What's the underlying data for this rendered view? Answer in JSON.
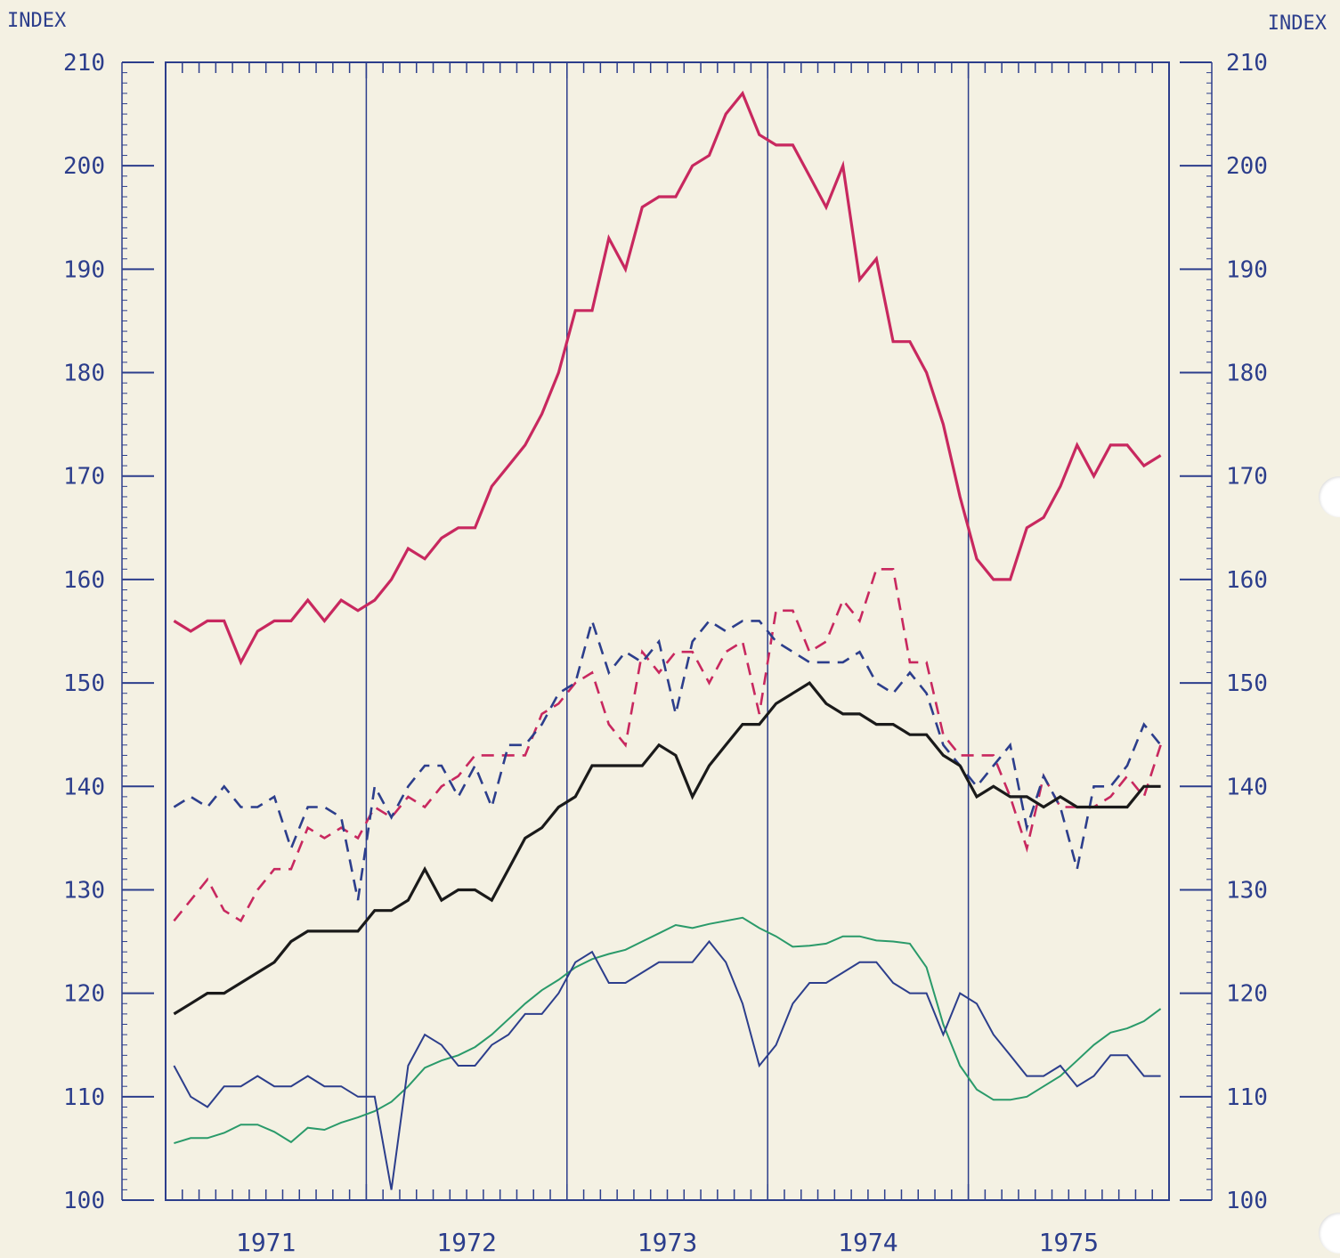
{
  "chart_data": {
    "type": "line",
    "left_axis_label": "INDEX",
    "right_axis_label": "INDEX",
    "ylim": [
      100,
      210
    ],
    "y_ticks": [
      "100",
      "110",
      "120",
      "130",
      "140",
      "150",
      "160",
      "170",
      "180",
      "190",
      "200",
      "210"
    ],
    "years": [
      "1971",
      "1972",
      "1973",
      "1974",
      "1975"
    ],
    "grid": "vertical lines at year boundaries",
    "series": [
      {
        "color": "#c8285f",
        "style": "solid-heavy",
        "values": [
          156,
          155,
          156,
          156,
          152,
          155,
          156,
          156,
          158,
          156,
          158,
          157,
          158,
          160,
          163,
          162,
          164,
          165,
          165,
          169,
          171,
          173,
          176,
          180,
          186,
          186,
          193,
          190,
          196,
          197,
          197,
          200,
          201,
          205,
          207,
          203,
          202,
          202,
          199,
          196,
          200,
          189,
          191,
          183,
          183,
          180,
          175,
          168,
          162,
          160,
          160,
          165,
          166,
          169,
          173,
          170,
          173,
          173,
          171,
          172
        ]
      },
      {
        "color": "#c8285f",
        "style": "dashed",
        "values": [
          127,
          129,
          131,
          128,
          127,
          130,
          132,
          132,
          136,
          135,
          136,
          135,
          138,
          137,
          139,
          138,
          140,
          141,
          143,
          143,
          143,
          143,
          147,
          148,
          150,
          151,
          146,
          144,
          153,
          151,
          153,
          153,
          150,
          153,
          154,
          147,
          157,
          157,
          153,
          154,
          158,
          156,
          161,
          161,
          152,
          152,
          145,
          143,
          143,
          143,
          139,
          134,
          141,
          138,
          138,
          138,
          139,
          141,
          139,
          144
        ]
      },
      {
        "color": "#2c3e8c",
        "style": "dashed",
        "values": [
          138,
          139,
          138,
          140,
          138,
          138,
          139,
          134,
          138,
          138,
          137,
          129,
          140,
          137,
          140,
          142,
          142,
          139,
          142,
          138,
          144,
          144,
          146,
          149,
          150,
          156,
          151,
          153,
          152,
          154,
          147,
          154,
          156,
          155,
          156,
          156,
          154,
          153,
          152,
          152,
          152,
          153,
          150,
          149,
          151,
          149,
          144,
          142,
          140,
          142,
          144,
          136,
          141,
          138,
          132,
          140,
          140,
          142,
          146,
          144
        ]
      },
      {
        "color": "#1a1a1a",
        "style": "solid-heavy",
        "values": [
          118,
          119,
          120,
          120,
          121,
          122,
          123,
          125,
          126,
          126,
          126,
          126,
          128,
          128,
          129,
          132,
          129,
          130,
          130,
          129,
          132,
          135,
          136,
          138,
          139,
          142,
          142,
          142,
          142,
          144,
          143,
          139,
          142,
          144,
          146,
          146,
          148,
          149,
          150,
          148,
          147,
          147,
          146,
          146,
          145,
          145,
          143,
          142,
          139,
          140,
          139,
          139,
          138,
          139,
          138,
          138,
          138,
          138,
          140,
          140
        ]
      },
      {
        "color": "#2a9a6a",
        "style": "solid",
        "values": [
          105.5,
          106,
          106,
          106.5,
          107.3,
          107.3,
          106.6,
          105.6,
          107,
          106.8,
          107.5,
          108,
          108.6,
          109.5,
          111,
          112.8,
          113.5,
          114,
          114.8,
          116,
          117.5,
          119,
          120.3,
          121.3,
          122.5,
          123.3,
          123.8,
          124.2,
          125,
          125.8,
          126.6,
          126.3,
          126.7,
          127,
          127.3,
          126.3,
          125.5,
          124.5,
          124.6,
          124.8,
          125.5,
          125.5,
          125.1,
          125,
          124.8,
          122.5,
          117,
          113,
          110.7,
          109.7,
          109.7,
          110,
          111,
          112,
          113.5,
          115,
          116.2,
          116.6,
          117.3,
          118.5
        ]
      },
      {
        "color": "#2c3e8c",
        "style": "solid",
        "values": [
          113,
          110,
          109,
          111,
          111,
          112,
          111,
          111,
          112,
          111,
          111,
          110,
          110,
          101,
          113,
          116,
          115,
          113,
          113,
          115,
          116,
          118,
          118,
          120,
          123,
          124,
          121,
          121,
          122,
          123,
          123,
          123,
          125,
          123,
          119,
          113,
          115,
          119,
          121,
          121,
          122,
          123,
          123,
          121,
          120,
          120,
          116,
          120,
          119,
          116,
          114,
          112,
          112,
          113,
          111,
          112,
          114,
          114,
          112,
          112
        ]
      }
    ]
  }
}
